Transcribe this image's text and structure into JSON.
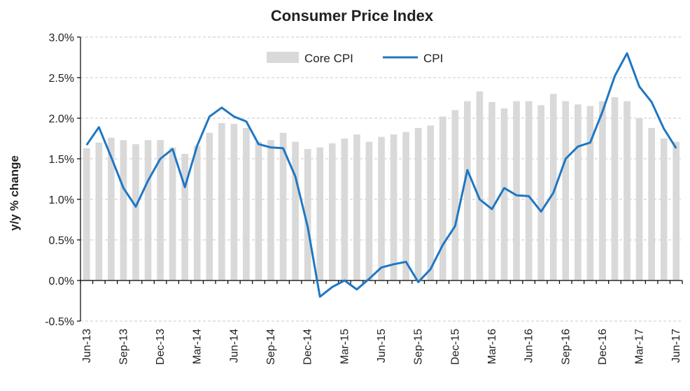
{
  "chart_data": {
    "type": "bar+line",
    "title": "Consumer  Price Index",
    "ylabel": "y/y % change",
    "xlabel": "",
    "ylim": [
      -0.5,
      3.0
    ],
    "yticks": [
      "-0.5%",
      "0.0%",
      "0.5%",
      "1.0%",
      "1.5%",
      "2.0%",
      "2.5%",
      "3.0%"
    ],
    "ytick_values": [
      -0.5,
      0.0,
      0.5,
      1.0,
      1.5,
      2.0,
      2.5,
      3.0
    ],
    "grid": true,
    "legend_position": "top-center",
    "categories": [
      "Jun-13",
      "Jul-13",
      "Aug-13",
      "Sep-13",
      "Oct-13",
      "Nov-13",
      "Dec-13",
      "Jan-14",
      "Feb-14",
      "Mar-14",
      "Apr-14",
      "May-14",
      "Jun-14",
      "Jul-14",
      "Aug-14",
      "Sep-14",
      "Oct-14",
      "Nov-14",
      "Dec-14",
      "Jan-15",
      "Feb-15",
      "Mar-15",
      "Apr-15",
      "May-15",
      "Jun-15",
      "Jul-15",
      "Aug-15",
      "Sep-15",
      "Oct-15",
      "Nov-15",
      "Dec-15",
      "Jan-16",
      "Feb-16",
      "Mar-16",
      "Apr-16",
      "May-16",
      "Jun-16",
      "Jul-16",
      "Aug-16",
      "Sep-16",
      "Oct-16",
      "Nov-16",
      "Dec-16",
      "Jan-17",
      "Feb-17",
      "Mar-17",
      "Apr-17",
      "May-17",
      "Jun-17"
    ],
    "xtick_labels": [
      "Jun-13",
      "Sep-13",
      "Dec-13",
      "Mar-14",
      "Jun-14",
      "Sep-14",
      "Dec-14",
      "Mar-15",
      "Jun-15",
      "Sep-15",
      "Dec-15",
      "Mar-16",
      "Jun-16",
      "Sep-16",
      "Dec-16",
      "Mar-17",
      "Jun-17"
    ],
    "series": [
      {
        "name": "Core CPI",
        "type": "bar",
        "color": "#d9d9d9",
        "values": [
          1.63,
          1.7,
          1.76,
          1.73,
          1.68,
          1.73,
          1.73,
          1.64,
          1.56,
          1.66,
          1.82,
          1.94,
          1.93,
          1.88,
          1.71,
          1.73,
          1.82,
          1.71,
          1.62,
          1.64,
          1.69,
          1.75,
          1.8,
          1.71,
          1.77,
          1.8,
          1.83,
          1.88,
          1.91,
          2.02,
          2.1,
          2.21,
          2.33,
          2.2,
          2.12,
          2.21,
          2.21,
          2.16,
          2.3,
          2.21,
          2.17,
          2.15,
          2.21,
          2.26,
          2.21,
          2.0,
          1.88,
          1.75,
          1.71
        ]
      },
      {
        "name": "CPI",
        "type": "line",
        "color": "#1f77c4",
        "values": [
          1.67,
          1.89,
          1.52,
          1.14,
          0.91,
          1.23,
          1.5,
          1.62,
          1.15,
          1.66,
          2.02,
          2.13,
          2.02,
          1.96,
          1.68,
          1.64,
          1.63,
          1.28,
          0.66,
          -0.2,
          -0.08,
          0.0,
          -0.11,
          0.02,
          0.16,
          0.2,
          0.23,
          -0.02,
          0.14,
          0.44,
          0.67,
          1.36,
          1.0,
          0.88,
          1.14,
          1.05,
          1.04,
          0.85,
          1.08,
          1.5,
          1.65,
          1.7,
          2.08,
          2.52,
          2.8,
          2.39,
          2.2,
          1.87,
          1.63
        ]
      }
    ]
  }
}
